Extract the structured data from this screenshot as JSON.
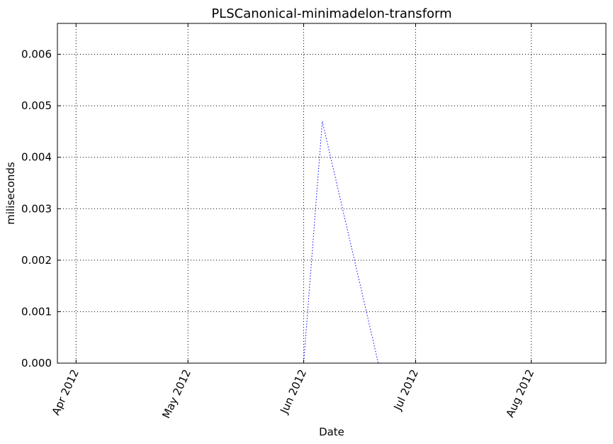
{
  "chart_data": {
    "type": "line",
    "title": "PLSCanonical-minimadelon-transform",
    "xlabel": "Date",
    "ylabel": "miliseconds",
    "x_range": [
      "2012-03-27",
      "2012-08-21"
    ],
    "ylim": [
      0,
      0.0066
    ],
    "yticks": [
      0.0,
      0.001,
      0.002,
      0.003,
      0.004,
      0.005,
      0.006
    ],
    "ytick_labels": [
      "0.000",
      "0.001",
      "0.002",
      "0.003",
      "0.004",
      "0.005",
      "0.006"
    ],
    "xticks": [
      {
        "date": "2012-04-01",
        "label": "Apr 2012"
      },
      {
        "date": "2012-05-01",
        "label": "May 2012"
      },
      {
        "date": "2012-06-01",
        "label": "Jun 2012"
      },
      {
        "date": "2012-07-01",
        "label": "Jul 2012"
      },
      {
        "date": "2012-08-01",
        "label": "Aug 2012"
      }
    ],
    "grid": true,
    "series": [
      {
        "color": "#0000ff",
        "style": "dotted",
        "points": [
          {
            "x": "2012-04-26",
            "y": 0.0
          },
          {
            "x": "2012-06-01",
            "y": 0.0
          },
          {
            "x": "2012-06-06",
            "y": 0.0047
          },
          {
            "x": "2012-06-21",
            "y": 0.0
          },
          {
            "x": "2012-07-22",
            "y": 0.0
          }
        ]
      }
    ]
  }
}
